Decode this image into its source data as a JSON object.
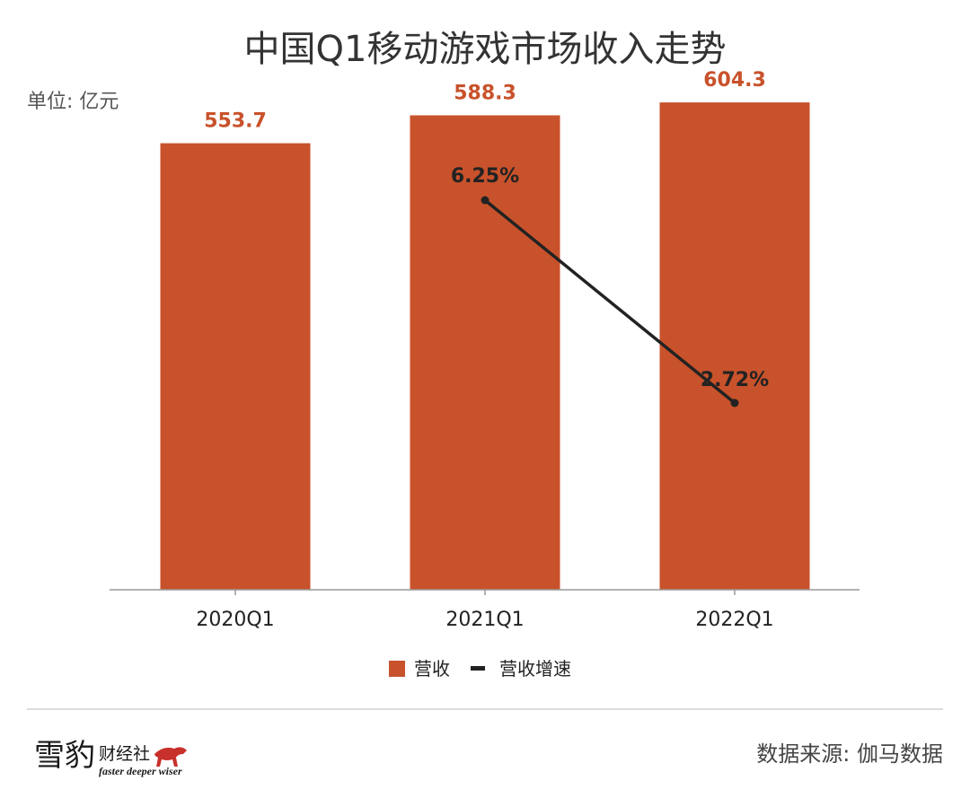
{
  "chart_data": {
    "type": "bar",
    "title": "中国Q1移动游戏市场收入走势",
    "unit_label": "单位: 亿元",
    "categories": [
      "2020Q1",
      "2021Q1",
      "2022Q1"
    ],
    "series": [
      {
        "name": "营收",
        "kind": "bar",
        "color": "#C8522B",
        "values": [
          553.7,
          588.3,
          604.3
        ],
        "labels": [
          "553.7",
          "588.3",
          "604.3"
        ]
      },
      {
        "name": "营收增速",
        "kind": "line",
        "color": "#222222",
        "values": [
          null,
          6.25,
          2.72
        ],
        "labels": [
          "",
          "6.25%",
          "2.72%"
        ]
      }
    ],
    "ylim": [
      0,
      620
    ],
    "grid": false,
    "legend": "bottom-center"
  },
  "footer": {
    "source": "数据来源: 伽马数据",
    "logo": {
      "name_large": "雪豹",
      "name_small": "财经社",
      "tagline": "faster deeper wiser"
    }
  },
  "colors": {
    "accent": "#C8522B",
    "line": "#222222",
    "axis": "#999999",
    "divider": "#dddddd"
  }
}
